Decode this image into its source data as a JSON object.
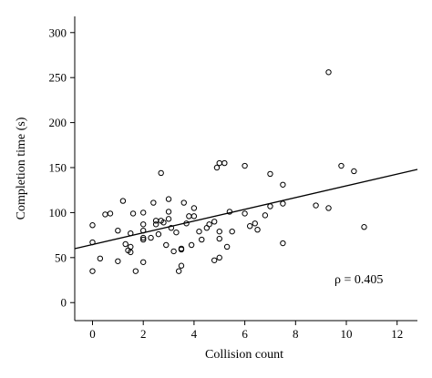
{
  "chart_data": {
    "type": "scatter",
    "title": "",
    "xlabel": "Collision count",
    "ylabel": "Completion time (s)",
    "xlim": [
      -0.7,
      12.8
    ],
    "ylim": [
      -20,
      318
    ],
    "xticks": [
      0,
      2,
      4,
      6,
      8,
      10,
      12
    ],
    "yticks": [
      0,
      50,
      100,
      150,
      200,
      250,
      300
    ],
    "grid": false,
    "annotation": "ρ = 0.405",
    "trendline": {
      "x": [
        -0.7,
        12.8
      ],
      "y": [
        60,
        148
      ]
    },
    "points": [
      {
        "x": 0,
        "y": 86
      },
      {
        "x": 0,
        "y": 67
      },
      {
        "x": 0,
        "y": 35
      },
      {
        "x": 0.3,
        "y": 49
      },
      {
        "x": 0.5,
        "y": 98
      },
      {
        "x": 0.7,
        "y": 99
      },
      {
        "x": 1,
        "y": 80
      },
      {
        "x": 1,
        "y": 46
      },
      {
        "x": 1.2,
        "y": 113
      },
      {
        "x": 1.3,
        "y": 65
      },
      {
        "x": 1.4,
        "y": 58
      },
      {
        "x": 1.5,
        "y": 62
      },
      {
        "x": 1.5,
        "y": 77
      },
      {
        "x": 1.5,
        "y": 56
      },
      {
        "x": 1.6,
        "y": 99
      },
      {
        "x": 1.7,
        "y": 35
      },
      {
        "x": 2,
        "y": 87
      },
      {
        "x": 2,
        "y": 80
      },
      {
        "x": 2,
        "y": 70
      },
      {
        "x": 2,
        "y": 72
      },
      {
        "x": 2,
        "y": 100
      },
      {
        "x": 2,
        "y": 45
      },
      {
        "x": 2.3,
        "y": 72
      },
      {
        "x": 2.4,
        "y": 111
      },
      {
        "x": 2.5,
        "y": 91
      },
      {
        "x": 2.5,
        "y": 87
      },
      {
        "x": 2.6,
        "y": 76
      },
      {
        "x": 2.7,
        "y": 91
      },
      {
        "x": 2.7,
        "y": 144
      },
      {
        "x": 2.8,
        "y": 89
      },
      {
        "x": 2.9,
        "y": 64
      },
      {
        "x": 3,
        "y": 93
      },
      {
        "x": 3,
        "y": 115
      },
      {
        "x": 3,
        "y": 101
      },
      {
        "x": 3.1,
        "y": 83
      },
      {
        "x": 3.2,
        "y": 57
      },
      {
        "x": 3.3,
        "y": 78
      },
      {
        "x": 3.4,
        "y": 35
      },
      {
        "x": 3.5,
        "y": 60
      },
      {
        "x": 3.5,
        "y": 59
      },
      {
        "x": 3.5,
        "y": 41
      },
      {
        "x": 3.6,
        "y": 111
      },
      {
        "x": 3.7,
        "y": 88
      },
      {
        "x": 3.8,
        "y": 96
      },
      {
        "x": 3.9,
        "y": 64
      },
      {
        "x": 4,
        "y": 96
      },
      {
        "x": 4,
        "y": 105
      },
      {
        "x": 4.2,
        "y": 79
      },
      {
        "x": 4.3,
        "y": 70
      },
      {
        "x": 4.5,
        "y": 83
      },
      {
        "x": 4.6,
        "y": 87
      },
      {
        "x": 4.8,
        "y": 90
      },
      {
        "x": 4.8,
        "y": 47
      },
      {
        "x": 4.9,
        "y": 150
      },
      {
        "x": 5,
        "y": 155
      },
      {
        "x": 5,
        "y": 79
      },
      {
        "x": 5,
        "y": 71
      },
      {
        "x": 5,
        "y": 50
      },
      {
        "x": 5.2,
        "y": 155
      },
      {
        "x": 5.3,
        "y": 62
      },
      {
        "x": 5.4,
        "y": 101
      },
      {
        "x": 5.5,
        "y": 79
      },
      {
        "x": 6,
        "y": 152
      },
      {
        "x": 6,
        "y": 99
      },
      {
        "x": 6.2,
        "y": 85
      },
      {
        "x": 6.4,
        "y": 88
      },
      {
        "x": 6.5,
        "y": 81
      },
      {
        "x": 6.8,
        "y": 97
      },
      {
        "x": 7,
        "y": 143
      },
      {
        "x": 7,
        "y": 107
      },
      {
        "x": 7.5,
        "y": 131
      },
      {
        "x": 7.5,
        "y": 110
      },
      {
        "x": 7.5,
        "y": 66
      },
      {
        "x": 8.8,
        "y": 108
      },
      {
        "x": 9.3,
        "y": 256
      },
      {
        "x": 9.3,
        "y": 105
      },
      {
        "x": 9.8,
        "y": 152
      },
      {
        "x": 10.3,
        "y": 146
      },
      {
        "x": 10.7,
        "y": 84
      }
    ]
  }
}
